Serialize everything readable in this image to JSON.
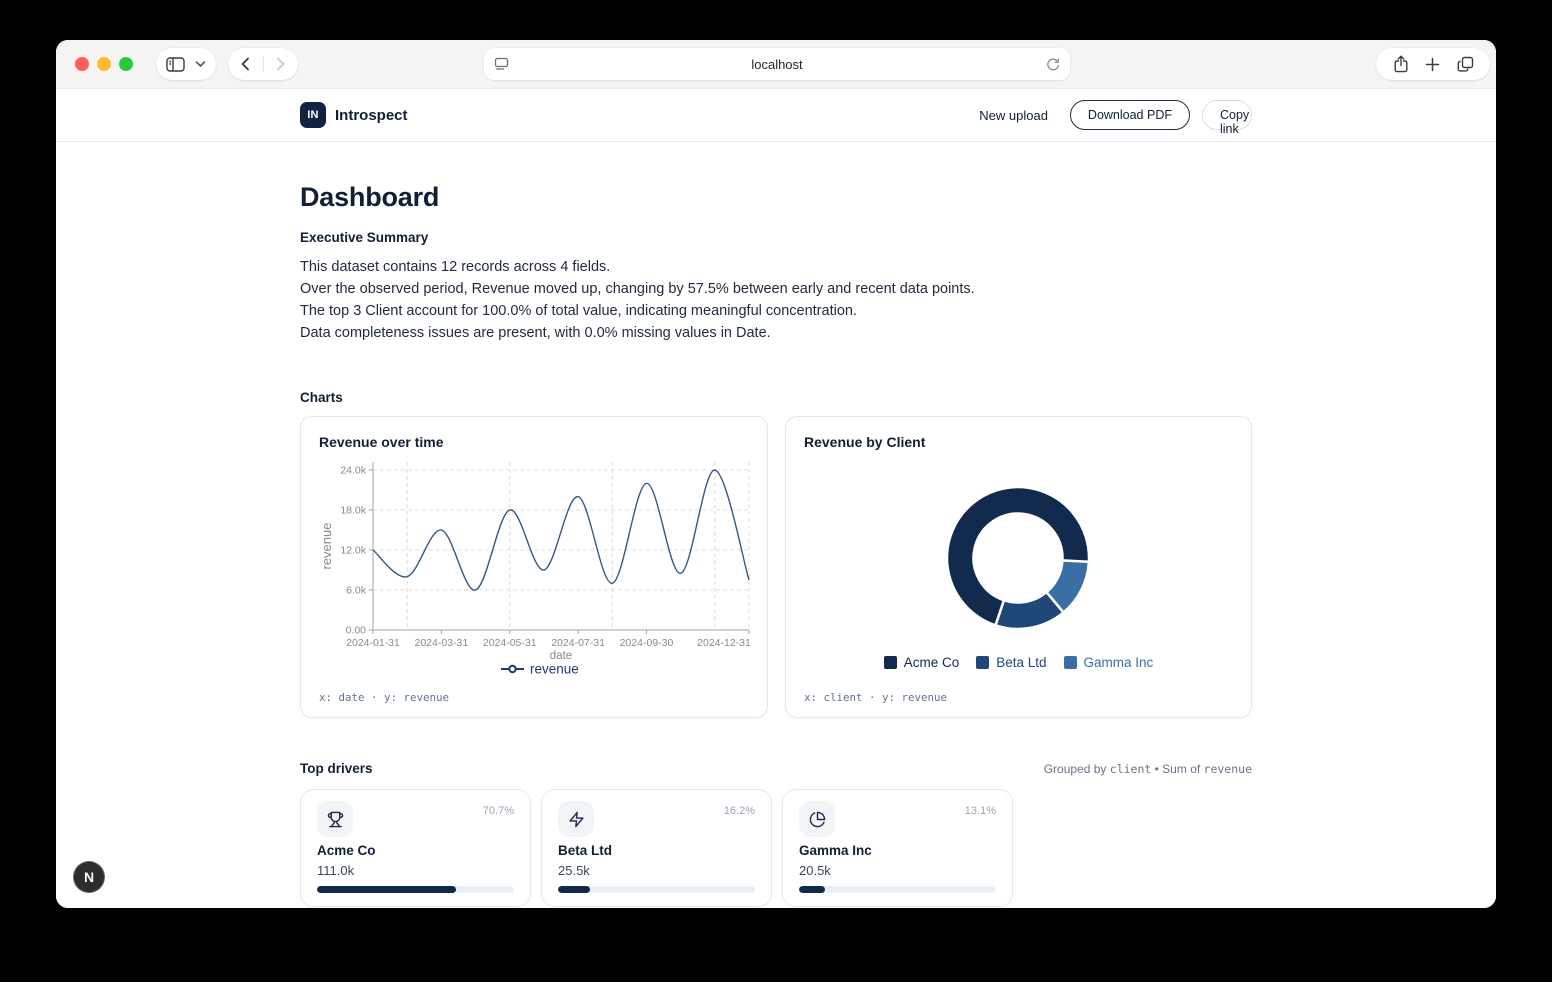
{
  "browser": {
    "url": "localhost",
    "traffic_colors": {
      "close": "#FF5F57",
      "minimize": "#FEBC2E",
      "zoom": "#28C840"
    }
  },
  "header": {
    "logo_text": "IN",
    "brand": "Introspect",
    "actions": [
      {
        "label": "New upload"
      },
      {
        "label": "Download PDF"
      },
      {
        "label": "Copy link"
      }
    ]
  },
  "page": {
    "title": "Dashboard",
    "executive_summary": {
      "heading": "Executive Summary",
      "lines": [
        "This dataset contains 12 records across 4 fields.",
        "Over the observed period, Revenue moved up, changing by 57.5% between early and recent data points.",
        "The top 3 Client account for 100.0% of total value, indicating meaningful concentration.",
        "Data completeness issues are present, with 0.0% missing values in Date."
      ]
    },
    "charts_heading": "Charts"
  },
  "chart_data": [
    {
      "type": "line",
      "title": "Revenue over time",
      "x": [
        "2024-01-31",
        "2024-02-29",
        "2024-03-31",
        "2024-04-30",
        "2024-05-31",
        "2024-06-30",
        "2024-07-31",
        "2024-08-31",
        "2024-09-30",
        "2024-10-31",
        "2024-11-30",
        "2024-12-31"
      ],
      "series": [
        {
          "name": "revenue",
          "values": [
            12000,
            8000,
            15000,
            6000,
            18000,
            9000,
            20000,
            7000,
            22000,
            8500,
            24000,
            7500
          ]
        }
      ],
      "xlabel": "date",
      "ylabel": "revenue",
      "ylim": [
        0,
        24000
      ],
      "y_ticks": [
        {
          "v": 0,
          "label": "0.00"
        },
        {
          "v": 6000,
          "label": "6.0k"
        },
        {
          "v": 12000,
          "label": "12.0k"
        },
        {
          "v": 18000,
          "label": "18.0k"
        },
        {
          "v": 24000,
          "label": "24.0k"
        }
      ],
      "x_tick_indices": [
        0,
        2,
        4,
        6,
        8,
        11
      ],
      "grid_x_indices": [
        1,
        4,
        7,
        10,
        11
      ],
      "line_color": "#35597F",
      "legend_color": "#1C3D6E",
      "grid_on": true,
      "legend_position": "bottom",
      "footer": "x: date · y: revenue"
    },
    {
      "type": "pie",
      "title": "Revenue by Client",
      "labels": [
        "Acme Co",
        "Beta Ltd",
        "Gamma Inc"
      ],
      "values": [
        111000,
        25500,
        20500
      ],
      "percentages": [
        70.7,
        16.2,
        13.1
      ],
      "colors": [
        "#112A4E",
        "#1F4878",
        "#3A6EA5"
      ],
      "donut": true,
      "start_angle_deg": 93,
      "direction": "counterclockwise",
      "legend_position": "bottom",
      "footer": "x: client · y: revenue"
    }
  ],
  "top_drivers": {
    "heading": "Top drivers",
    "grouped_by": {
      "prefix": "Grouped by ",
      "field": "client",
      "middle": " • Sum of ",
      "value_field": "revenue"
    },
    "cards": [
      {
        "icon": "trophy-icon",
        "pct": "70.7%",
        "name": "Acme Co",
        "value": "111.0k",
        "progress": 70.7
      },
      {
        "icon": "zap-icon",
        "pct": "16.2%",
        "name": "Beta Ltd",
        "value": "25.5k",
        "progress": 16.2
      },
      {
        "icon": "pie-chart-icon",
        "pct": "13.1%",
        "name": "Gamma Inc",
        "value": "20.5k",
        "progress": 13.1
      }
    ]
  },
  "next_badge": "N"
}
